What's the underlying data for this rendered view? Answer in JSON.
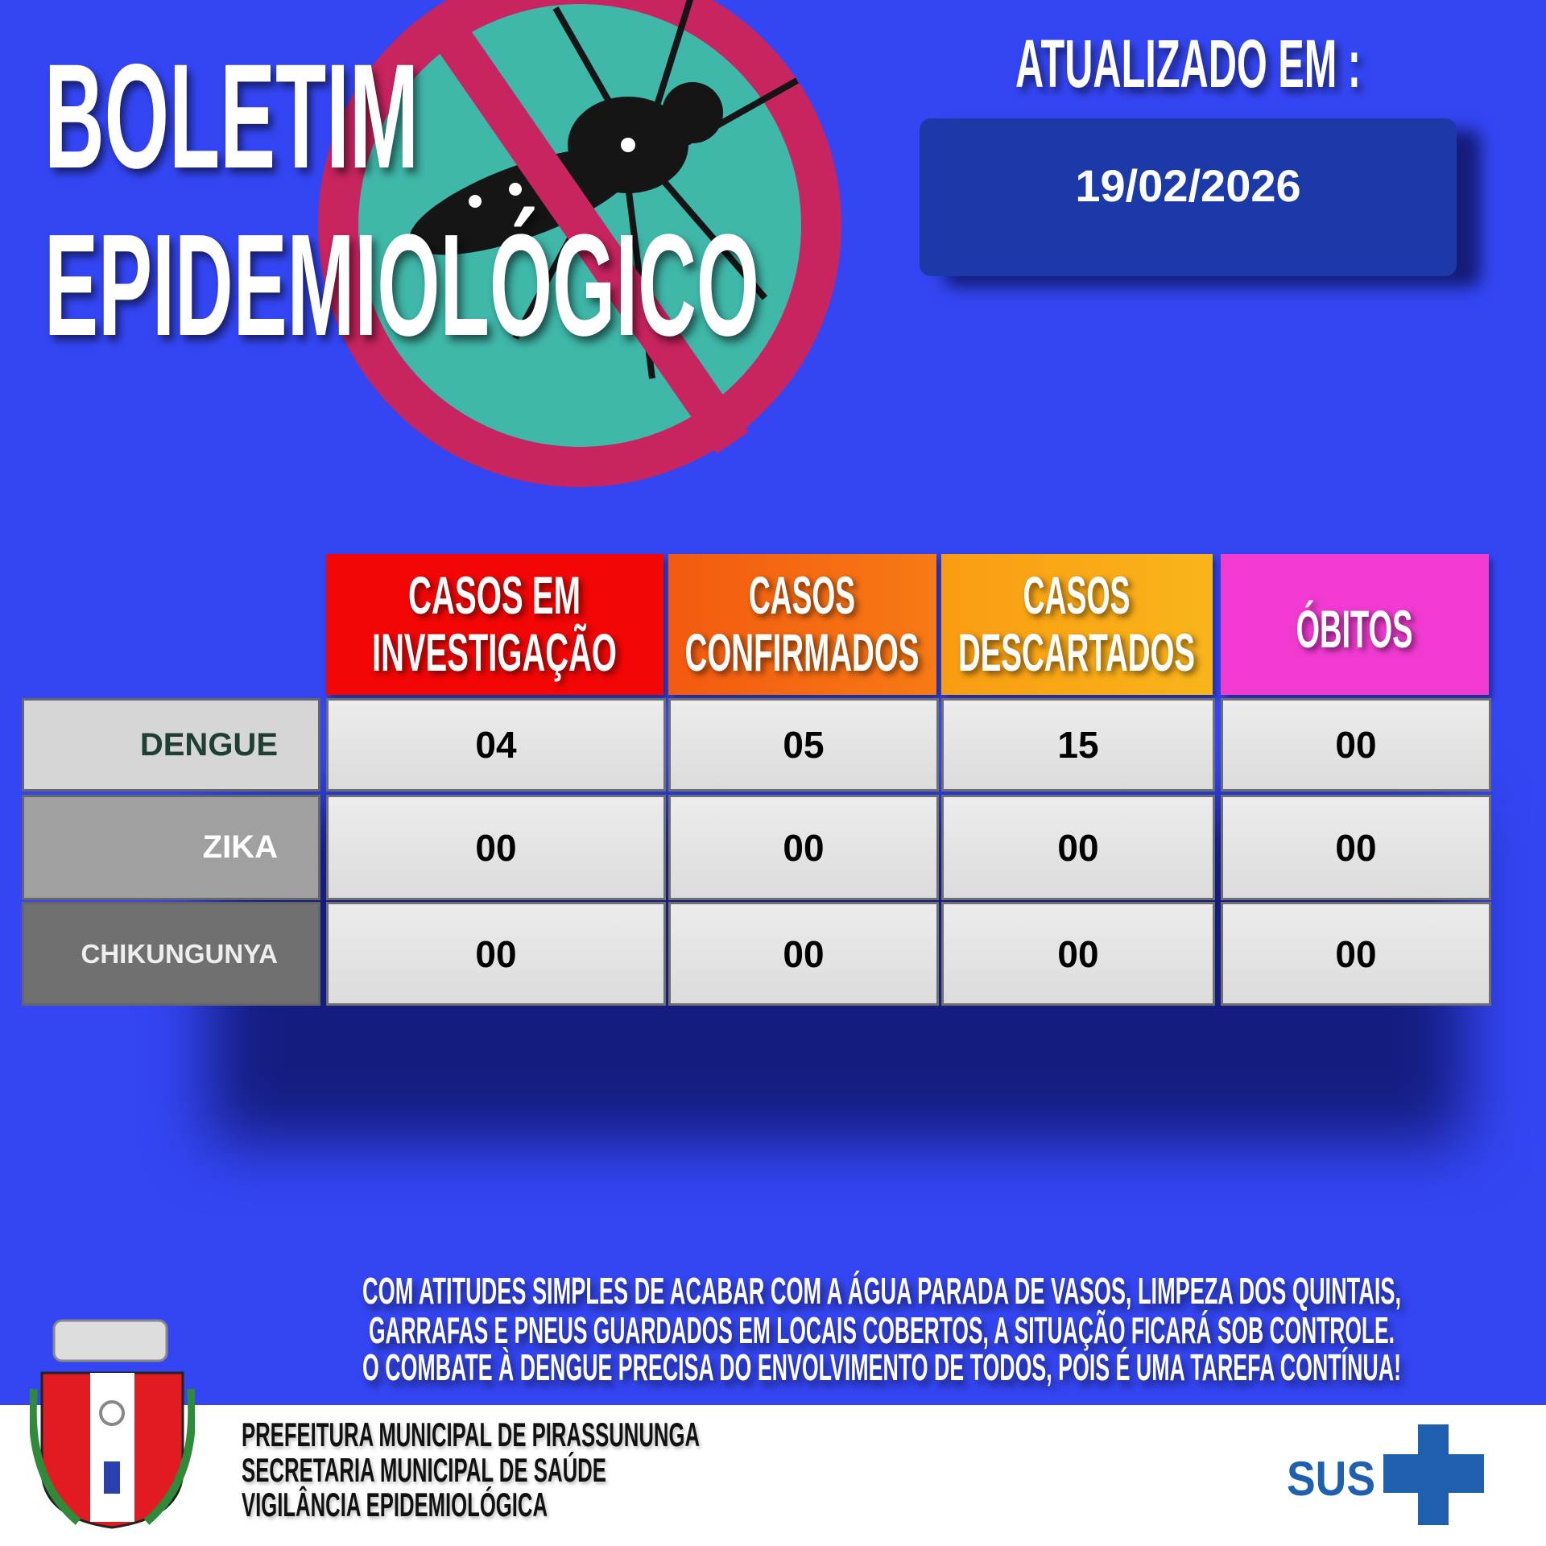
{
  "header": {
    "title_line1": "BOLETIM",
    "title_line2": "EPIDEMIOLÓGICO",
    "updated_label": "ATUALIZADO EM :",
    "updated_date": "19/02/2026"
  },
  "table": {
    "columns": [
      {
        "label_l1": "CASOS EM",
        "label_l2": "INVESTIGAÇÃO",
        "color": "#f40606"
      },
      {
        "label_l1": "CASOS",
        "label_l2": "CONFIRMADOS",
        "color": "#f5650f"
      },
      {
        "label_l1": "CASOS",
        "label_l2": "DESCARTADOS",
        "color": "#f9a512"
      },
      {
        "label_l1": "",
        "label_l2": "ÓBITOS",
        "color": "#f23ad2"
      }
    ],
    "rows": [
      {
        "label": "DENGUE",
        "values": [
          "04",
          "05",
          "15",
          "00"
        ]
      },
      {
        "label": "ZIKA",
        "values": [
          "00",
          "00",
          "00",
          "00"
        ]
      },
      {
        "label": "CHIKUNGUNYA",
        "values": [
          "00",
          "00",
          "00",
          "00"
        ]
      }
    ]
  },
  "message": [
    "COM ATITUDES SIMPLES DE ACABAR COM A ÁGUA PARADA DE VASOS, LIMPEZA DOS QUINTAIS,",
    "GARRAFAS E PNEUS GUARDADOS EM LOCAIS COBERTOS, A SITUAÇÃO FICARÁ SOB CONTROLE.",
    "O COMBATE À DENGUE PRECISA DO ENVOLVIMENTO DE TODOS, POIS É UMA TAREFA CONTÍNUA!"
  ],
  "footer": {
    "lines": [
      "PREFEITURA MUNICIPAL DE PIRASSUNUNGA",
      "SECRETARIA MUNICIPAL DE SAÚDE",
      "VIGILÂNCIA EPIDEMIOLÓGICA"
    ],
    "sus_logo": "SUS"
  }
}
